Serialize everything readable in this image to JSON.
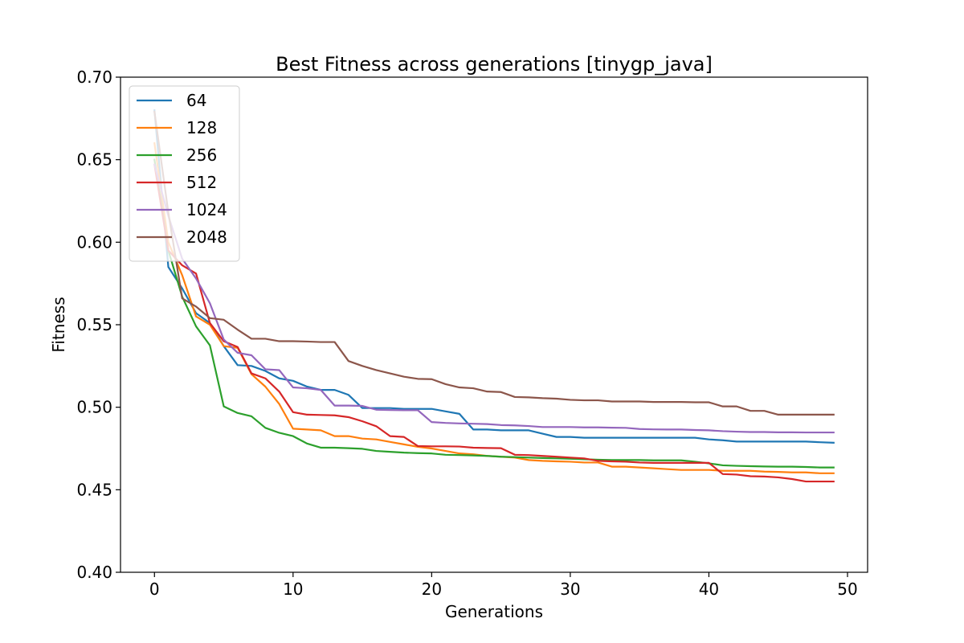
{
  "chart_data": {
    "type": "line",
    "title": "Best Fitness across generations [tinygp_java]",
    "xlabel": "Generations",
    "ylabel": "Fitness",
    "xlim": [
      -2.45,
      51.45
    ],
    "ylim": [
      0.4,
      0.7
    ],
    "xticks": [
      "0",
      "10",
      "20",
      "30",
      "40",
      "50"
    ],
    "yticks": [
      "0.40",
      "0.45",
      "0.50",
      "0.55",
      "0.60",
      "0.65",
      "0.70"
    ],
    "grid": false,
    "legend_position": "top-left",
    "series": [
      {
        "name": "64",
        "color": "#1f77b4",
        "values": [
          0.68,
          0.585,
          0.572,
          0.557,
          0.551,
          0.537,
          0.5255,
          0.525,
          0.522,
          0.5175,
          0.516,
          0.5125,
          0.5105,
          0.5105,
          0.5075,
          0.4995,
          0.4995,
          0.4995,
          0.499,
          0.499,
          0.499,
          0.4975,
          0.496,
          0.4865,
          0.4865,
          0.486,
          0.486,
          0.486,
          0.484,
          0.482,
          0.482,
          0.4815,
          0.4815,
          0.4815,
          0.4815,
          0.4815,
          0.4815,
          0.4815,
          0.4815,
          0.4815,
          0.4805,
          0.48,
          0.4792,
          0.4792,
          0.4792,
          0.4792,
          0.4792,
          0.4792,
          0.4788,
          0.4785
        ]
      },
      {
        "name": "128",
        "color": "#ff7f0e",
        "values": [
          0.66,
          0.6,
          0.58,
          0.555,
          0.55,
          0.537,
          0.536,
          0.52,
          0.5125,
          0.502,
          0.487,
          0.4865,
          0.486,
          0.4825,
          0.4825,
          0.481,
          0.4805,
          0.479,
          0.4775,
          0.476,
          0.475,
          0.4735,
          0.472,
          0.4715,
          0.4705,
          0.47,
          0.4695,
          0.468,
          0.4675,
          0.4672,
          0.467,
          0.4665,
          0.4665,
          0.464,
          0.464,
          0.4635,
          0.463,
          0.4625,
          0.462,
          0.462,
          0.462,
          0.4615,
          0.4615,
          0.4615,
          0.461,
          0.4608,
          0.4605,
          0.4605,
          0.46,
          0.46
        ]
      },
      {
        "name": "256",
        "color": "#2ca02c",
        "values": [
          0.65,
          0.595,
          0.567,
          0.549,
          0.5375,
          0.5005,
          0.4965,
          0.4945,
          0.4875,
          0.4845,
          0.4825,
          0.478,
          0.4755,
          0.4755,
          0.4752,
          0.4748,
          0.4735,
          0.473,
          0.4725,
          0.4722,
          0.472,
          0.4712,
          0.471,
          0.4708,
          0.4705,
          0.47,
          0.4698,
          0.4695,
          0.4692,
          0.469,
          0.4688,
          0.4685,
          0.4682,
          0.468,
          0.468,
          0.468,
          0.4678,
          0.4678,
          0.4678,
          0.467,
          0.466,
          0.4648,
          0.4645,
          0.4643,
          0.4641,
          0.464,
          0.464,
          0.4638,
          0.4635,
          0.4635
        ]
      },
      {
        "name": "512",
        "color": "#d62728",
        "values": [
          0.647,
          0.595,
          0.586,
          0.581,
          0.551,
          0.54,
          0.5365,
          0.5205,
          0.5175,
          0.5095,
          0.497,
          0.4955,
          0.4953,
          0.4951,
          0.494,
          0.4915,
          0.4885,
          0.4825,
          0.482,
          0.4765,
          0.4763,
          0.4763,
          0.4762,
          0.4755,
          0.4753,
          0.4752,
          0.4712,
          0.471,
          0.4705,
          0.47,
          0.4695,
          0.469,
          0.4675,
          0.4672,
          0.467,
          0.4665,
          0.4663,
          0.4663,
          0.4663,
          0.4663,
          0.4663,
          0.4595,
          0.4592,
          0.4582,
          0.458,
          0.4575,
          0.4565,
          0.455,
          0.455,
          0.455
        ]
      },
      {
        "name": "1024",
        "color": "#9467bd",
        "values": [
          0.647,
          0.616,
          0.59,
          0.578,
          0.563,
          0.541,
          0.533,
          0.5315,
          0.523,
          0.5225,
          0.512,
          0.5115,
          0.5105,
          0.501,
          0.501,
          0.5008,
          0.4985,
          0.4983,
          0.4982,
          0.4982,
          0.491,
          0.4905,
          0.4902,
          0.49,
          0.4898,
          0.4892,
          0.489,
          0.4886,
          0.488,
          0.488,
          0.488,
          0.4878,
          0.4878,
          0.4876,
          0.4875,
          0.4868,
          0.4866,
          0.4865,
          0.4865,
          0.4862,
          0.486,
          0.4855,
          0.4852,
          0.485,
          0.485,
          0.4848,
          0.4848,
          0.4847,
          0.4847,
          0.4847
        ]
      },
      {
        "name": "2048",
        "color": "#8c564b",
        "values": [
          0.679,
          0.618,
          0.566,
          0.561,
          0.554,
          0.553,
          0.547,
          0.5415,
          0.5415,
          0.54,
          0.54,
          0.5398,
          0.5395,
          0.5395,
          0.528,
          0.525,
          0.5225,
          0.5205,
          0.5185,
          0.5172,
          0.517,
          0.514,
          0.512,
          0.5115,
          0.5095,
          0.5092,
          0.5062,
          0.506,
          0.5055,
          0.5052,
          0.5045,
          0.5042,
          0.5042,
          0.5035,
          0.5035,
          0.5035,
          0.5032,
          0.5032,
          0.5032,
          0.503,
          0.503,
          0.5005,
          0.5005,
          0.4978,
          0.4978,
          0.4955,
          0.4955,
          0.4955,
          0.4955,
          0.4955
        ]
      }
    ]
  }
}
